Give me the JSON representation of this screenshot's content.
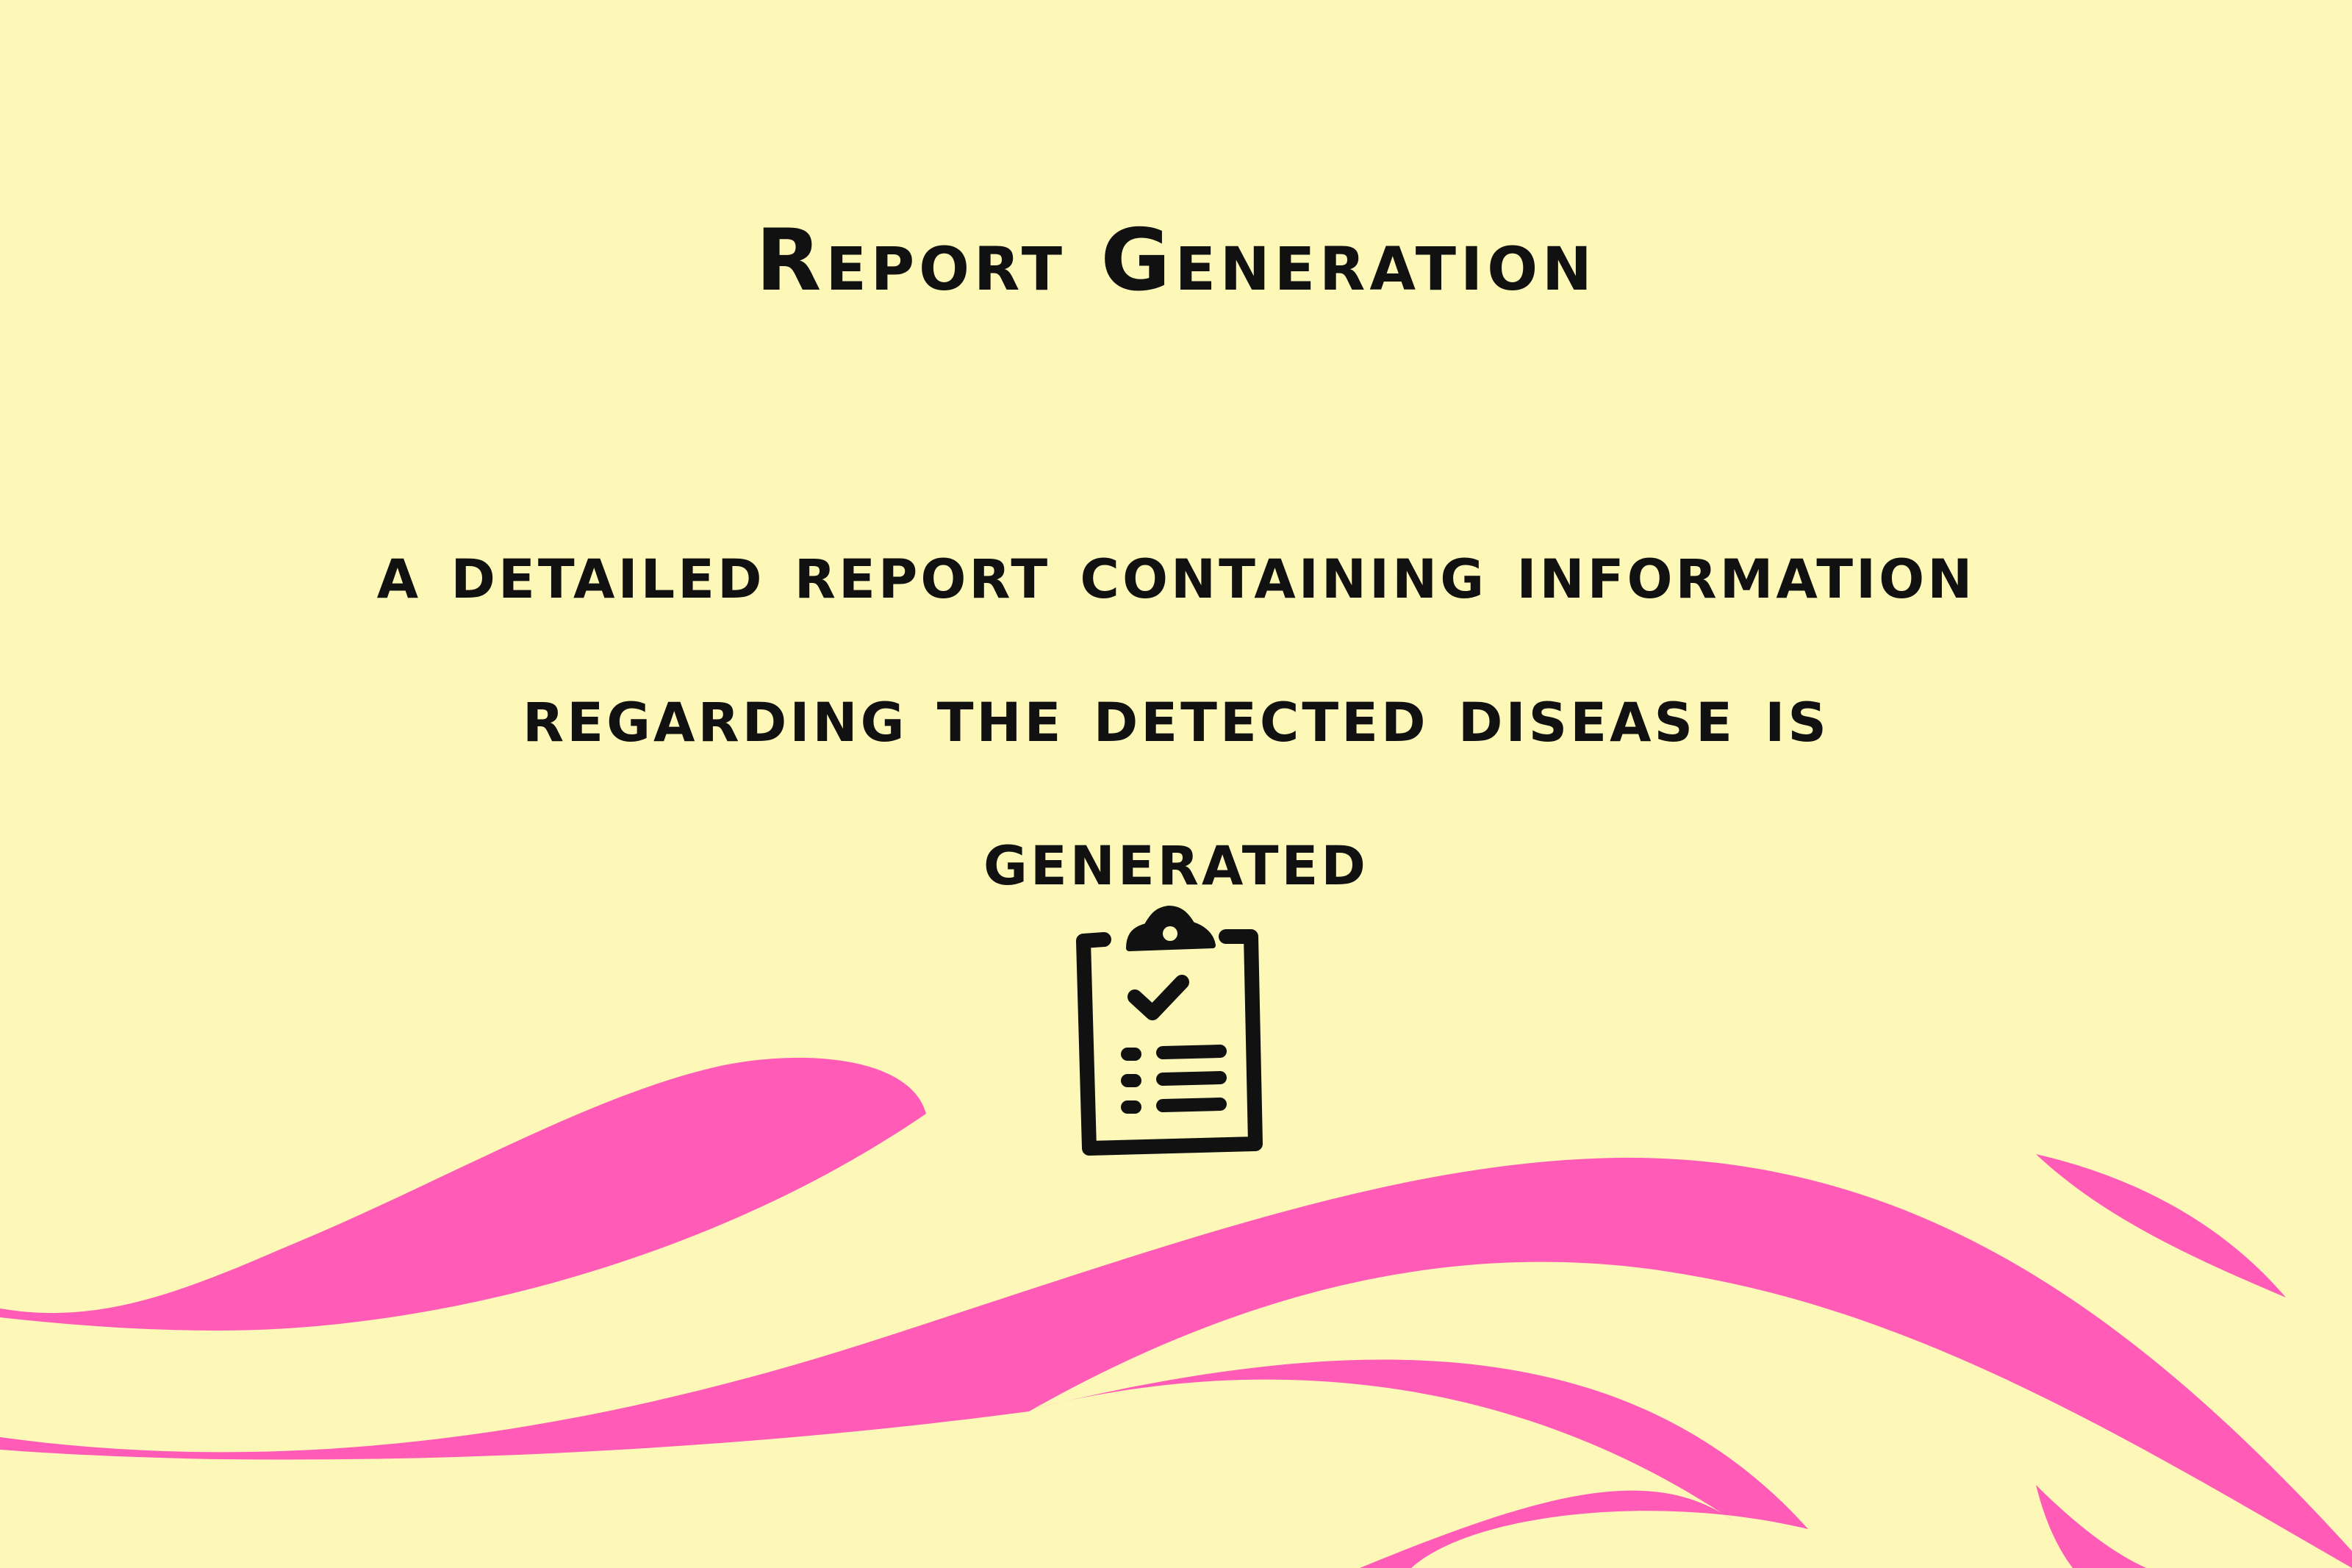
{
  "slide": {
    "title": "Report Generation",
    "body_lines": [
      "A detailed report containing information",
      "regarding the detected disease is",
      "generated"
    ],
    "icon": "clipboard-check-icon"
  },
  "colors": {
    "background": "#fdf8b8",
    "wave": "#ff5bb7",
    "text": "#111111"
  }
}
